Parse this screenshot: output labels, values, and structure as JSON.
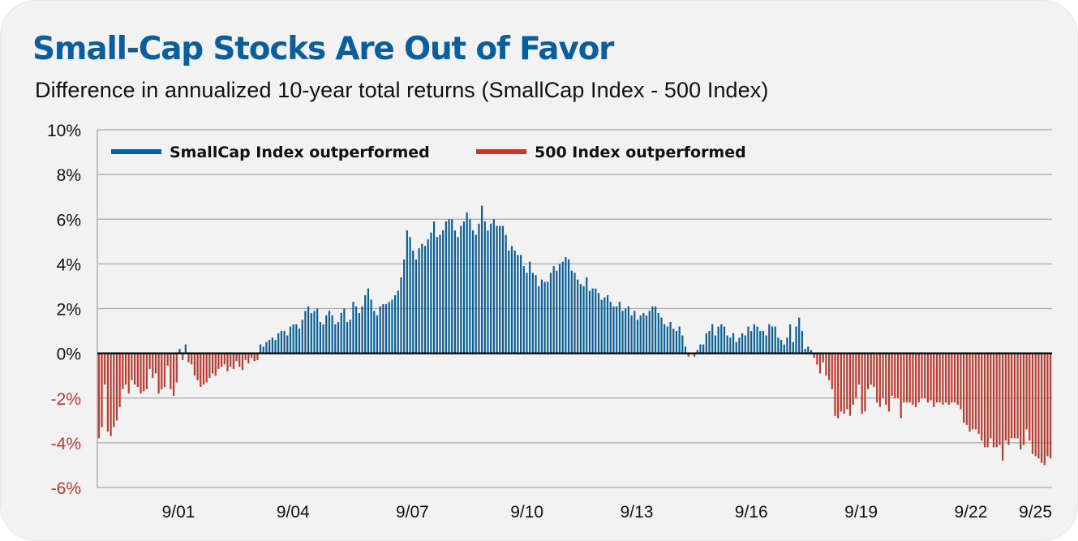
{
  "title": "Small-Cap Stocks Are Out of Favor",
  "subtitle": "Difference in annualized 10-year total returns (SmallCap Index - 500 Index)",
  "colors": {
    "title": "#0b5e9c",
    "positive": "#0b5e9c",
    "negative": "#c0392f",
    "grid": "#a8a8a8",
    "zero_line": "#000000",
    "negative_tick": "#c0392f"
  },
  "chart_data": {
    "type": "bar",
    "title": "Small-Cap Stocks Are Out of Favor",
    "subtitle": "Difference in annualized 10-year total returns (SmallCap Index - 500 Index)",
    "xlabel": "",
    "ylabel": "",
    "ylim": [
      -6,
      10
    ],
    "yticks": [
      10,
      8,
      6,
      4,
      2,
      0,
      -2,
      -4,
      -6
    ],
    "ytick_labels": [
      "10%",
      "8%",
      "6%",
      "4%",
      "2%",
      "0%",
      "-2%",
      "-4%",
      "-6%"
    ],
    "xtick_labels": [
      "9/01",
      "9/04",
      "9/07",
      "9/10",
      "9/13",
      "9/16",
      "9/19",
      "9/22",
      "9/25"
    ],
    "xtick_positions": [
      0.085,
      0.205,
      0.33,
      0.45,
      0.565,
      0.685,
      0.8,
      0.915,
      0.99
    ],
    "grid": true,
    "legend": {
      "placement": "top-left",
      "entries": [
        {
          "label": "SmallCap Index outperformed",
          "color": "#0b5e9c"
        },
        {
          "label": "500 Index outperformed",
          "color": "#c0392f"
        }
      ]
    },
    "series_segments": [
      {
        "start": "9/00",
        "values": [
          -3.8,
          -3.3,
          -1.4,
          -3.5,
          -3.7,
          -3.3,
          -3.0,
          -2.4,
          -1.6,
          -1.4,
          -1.8,
          -1.2,
          -1.4,
          -1.5,
          -1.8,
          -1.7,
          -1.6,
          -0.7,
          -1.1,
          -0.9,
          -1.8,
          -1.6,
          -1.5,
          -0.55,
          -1.6,
          -1.9,
          -1.3,
          0.2,
          -0.3,
          0.4,
          -0.4,
          -0.5,
          -1.0,
          -1.2,
          -1.5,
          -1.4,
          -1.3,
          -1.1,
          -0.9,
          -1.0,
          -0.7,
          -0.6,
          -0.5,
          -0.8,
          -0.6,
          -0.7,
          -0.35,
          -0.6,
          -0.75,
          -0.3,
          -0.45,
          -0.2,
          -0.35,
          -0.3,
          0.4,
          0.3,
          0.5,
          0.6,
          0.7,
          0.6,
          0.9,
          1.0,
          1.0,
          0.8,
          1.2,
          1.3,
          1.3,
          1.1,
          1.5,
          1.9,
          2.1,
          1.8,
          1.9,
          2.0,
          1.4,
          1.3,
          1.7,
          1.9,
          1.7,
          1.3,
          1.4,
          1.8,
          2.0,
          1.4,
          1.5,
          2.3,
          2.1,
          1.8,
          2.1,
          2.6,
          2.9,
          2.4,
          1.9,
          1.7,
          2.1,
          2.2,
          2.2,
          2.3,
          2.4,
          2.6,
          2.8
        ]
      },
      {
        "start": "9/08",
        "values": [
          3.4,
          4.2,
          5.5,
          5.2,
          4.6,
          4.2,
          4.7,
          4.9,
          4.8,
          5.1,
          5.4,
          5.9,
          5.2,
          5.3,
          5.5,
          5.9,
          6.0,
          6.0,
          5.5,
          5.2,
          5.7,
          5.9,
          6.3,
          6.0,
          5.5,
          5.3,
          5.8,
          6.6,
          5.9,
          5.5,
          5.8,
          6.0,
          5.7,
          5.7,
          5.7,
          5.3,
          4.6,
          4.8,
          4.6,
          4.4,
          4.4,
          3.9,
          3.6,
          4.1,
          3.6,
          3.5,
          3.0,
          3.3,
          3.2,
          3.2,
          3.6,
          3.9,
          3.7,
          4.0,
          4.1,
          4.3,
          4.2,
          3.7,
          3.6,
          3.3,
          3.1,
          3.0,
          3.4,
          2.8,
          2.9,
          2.9,
          2.7,
          2.4,
          2.5,
          2.6,
          2.3,
          2.1,
          2.1,
          2.3,
          1.9,
          2.0,
          2.1,
          1.7,
          1.9,
          1.5,
          1.7,
          1.8,
          1.7,
          1.9,
          2.1,
          2.1,
          1.8,
          1.6,
          1.3,
          1.2,
          1.4,
          1.1,
          1.0,
          1.2,
          0.8,
          0.3
        ]
      },
      {
        "start": "9/16",
        "values": [
          -0.15,
          0.0,
          -0.15,
          0.15,
          0.4,
          0.4,
          0.9,
          1.0,
          1.3,
          0.8,
          1.2,
          1.3,
          1.2,
          0.8,
          0.7,
          0.9,
          0.5,
          0.7,
          0.9,
          0.8,
          1.2,
          1.0,
          1.3,
          1.2,
          1.0,
          1.0,
          0.8,
          1.3,
          1.2,
          1.2,
          0.7,
          0.6,
          0.4,
          0.7,
          1.3,
          0.5,
          1.2,
          1.6,
          1.0,
          0.2,
          0.3,
          0.15
        ]
      },
      {
        "start": "9/19",
        "values": [
          -0.2,
          -0.5,
          -0.9,
          -0.4,
          -1.0,
          -1.2,
          -1.6,
          -2.8,
          -2.9,
          -2.6,
          -2.7,
          -2.5,
          -2.8,
          -2.3,
          -2.0,
          -1.4,
          -2.7,
          -2.6,
          -1.6,
          -1.4,
          -1.5,
          -2.2,
          -2.4,
          -2.0,
          -2.3,
          -2.6,
          -1.9,
          -2.0,
          -2.0,
          -2.9,
          -2.2,
          -2.2,
          -2.2,
          -2.3,
          -2.4,
          -2.2,
          -2.0,
          -2.0,
          -2.2,
          -2.1,
          -2.4,
          -2.2,
          -2.2,
          -2.3,
          -2.2,
          -2.3,
          -2.2,
          -2.2,
          -2.3,
          -2.5,
          -3.1,
          -3.2,
          -3.5,
          -3.4,
          -3.4,
          -3.6,
          -3.9,
          -4.2,
          -4.2,
          -3.8,
          -4.2,
          -4.2,
          -4.1,
          -4.8,
          -3.9,
          -4.1,
          -3.8,
          -3.8,
          -3.8,
          -4.3,
          -4.1,
          -3.4,
          -3.9,
          -4.5,
          -4.6,
          -4.7,
          -4.9,
          -5.0,
          -4.6,
          -4.7
        ]
      }
    ]
  }
}
